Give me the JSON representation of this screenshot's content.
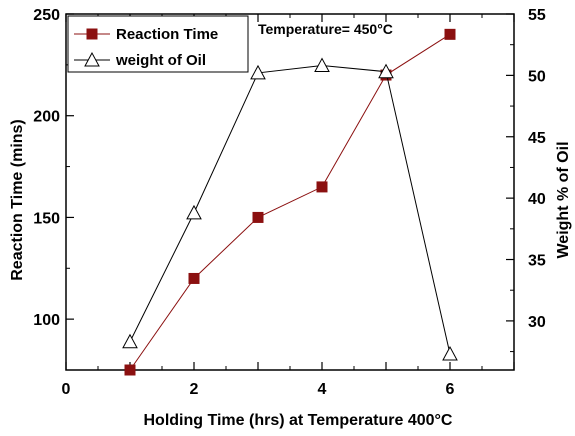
{
  "chart_data": {
    "type": "line",
    "xlabel": "Holding Time (hrs) at Temperature 400°C",
    "ylabel_left": "Reaction Time (mins)",
    "ylabel_right": "Weight % of Oil",
    "annotation": "Temperature= 450°C",
    "xlim": [
      0,
      7
    ],
    "ylim_left": [
      75,
      250
    ],
    "ylim_right": [
      26,
      55
    ],
    "x_ticks": [
      "0",
      "2",
      "4",
      "6"
    ],
    "y_left_ticks": [
      "100",
      "150",
      "200",
      "250"
    ],
    "y_right_ticks": [
      "30",
      "35",
      "40",
      "45",
      "50",
      "55"
    ],
    "legend_position": "top-left",
    "series": [
      {
        "name": "Reaction Time",
        "axis": "left",
        "marker": "filled-square",
        "color": "#8b1010",
        "x": [
          1,
          2,
          3,
          4,
          5,
          6
        ],
        "values": [
          75,
          120,
          150,
          165,
          220,
          240
        ]
      },
      {
        "name": "weight of Oil",
        "axis": "right",
        "marker": "open-triangle",
        "color": "#000000",
        "x": [
          1,
          2,
          3,
          4,
          5,
          6
        ],
        "values": [
          28.3,
          38.8,
          50.2,
          50.8,
          50.3,
          27.3
        ]
      }
    ]
  }
}
